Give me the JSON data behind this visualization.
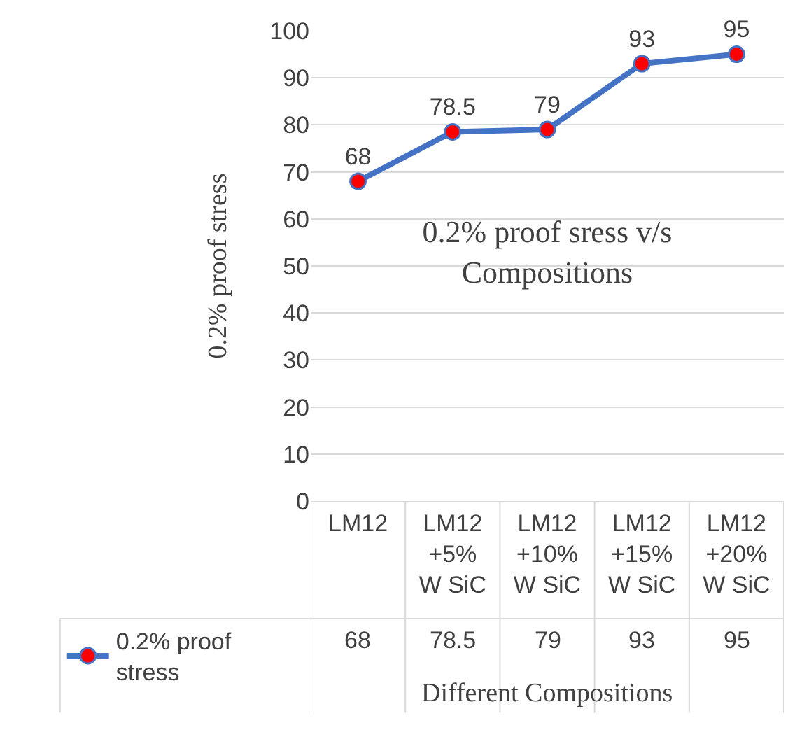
{
  "chart_data": {
    "type": "line",
    "title": "0.2% proof sress v/s Compositions",
    "xlabel": "Different Compositions",
    "ylabel": "0.2% proof stress",
    "categories": [
      "LM12",
      "LM12 +5% W SiC",
      "LM12 +10% W SiC",
      "LM12 +15% W SiC",
      "LM12 +20% W SiC"
    ],
    "series": [
      {
        "name": "0.2% proof stress",
        "color": "#4472c4",
        "values": [
          68,
          78.5,
          79,
          93,
          95
        ]
      }
    ],
    "ylim": [
      0,
      100
    ],
    "yticks": [
      0,
      10,
      20,
      30,
      40,
      50,
      60,
      70,
      80,
      90,
      100
    ],
    "grid": "y",
    "legend": "bottom left",
    "marker": "circle",
    "line_style": "solid",
    "data_labels": true,
    "annotations": [
      "68",
      "78.5",
      "79",
      "93",
      "95"
    ]
  }
}
